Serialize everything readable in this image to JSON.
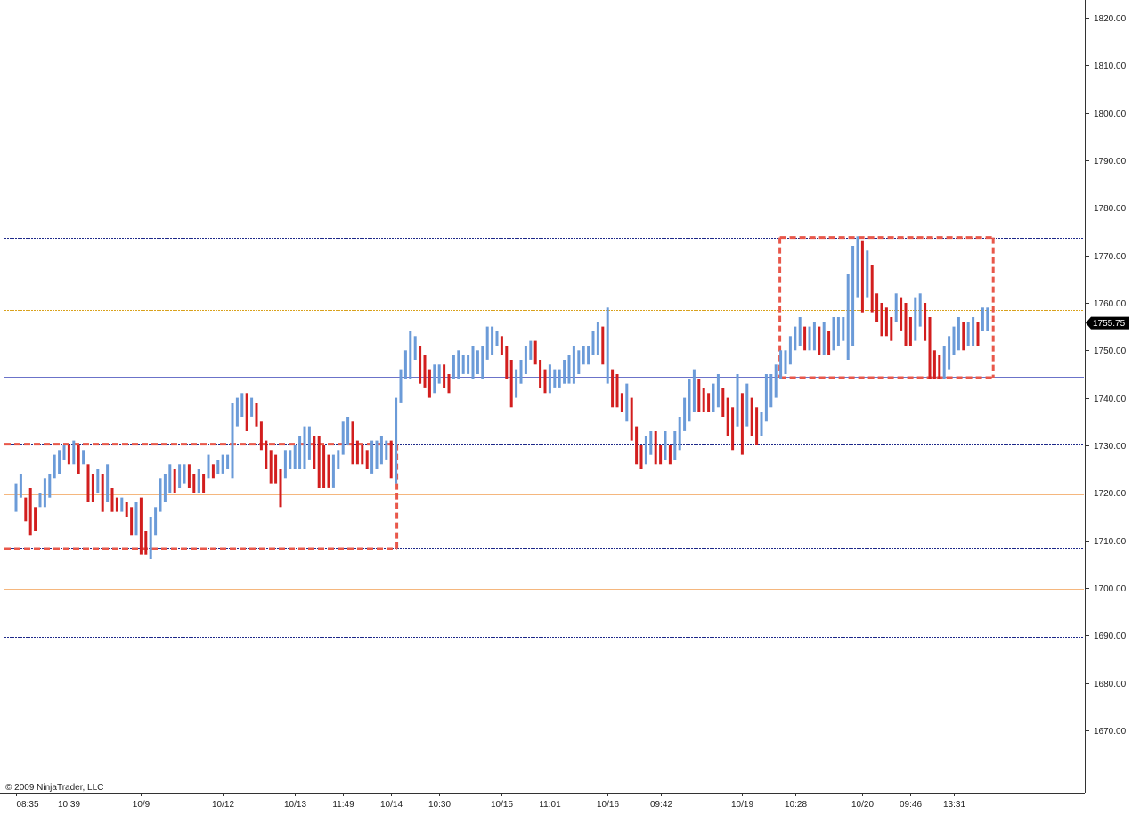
{
  "app": {
    "copyright": "© 2009 NinjaTrader, LLC"
  },
  "colors": {
    "up_bar": "#6b9bd8",
    "down_bar": "#d21e1e",
    "navy_line": "#1f2a8a",
    "orange_line": "#f5b77e",
    "gold_line": "#d9a21e",
    "blue_line": "#6b73c9",
    "box_color": "#e8574a",
    "axis": "#333333",
    "price_tag_bg": "#000000"
  },
  "chart_data": {
    "type": "ohlc",
    "title": "",
    "ylabel": "",
    "xlabel": "",
    "ylim": [
      1661,
      1823
    ],
    "y_ticks": [
      1820,
      1810,
      1800,
      1790,
      1780,
      1770,
      1760,
      1750,
      1740,
      1730,
      1720,
      1710,
      1700,
      1690,
      1680,
      1670
    ],
    "y_tick_labels": [
      "1820.00",
      "1810.00",
      "1800.00",
      "1790.00",
      "1780.00",
      "1770.00",
      "1760.00",
      "1750.00",
      "1740.00",
      "1730.00",
      "1720.00",
      "1710.00",
      "1700.00",
      "1690.00",
      "1680.00",
      "1670.00"
    ],
    "x_tick_labels": [
      {
        "bar": 0,
        "label": "08:35"
      },
      {
        "bar": 11,
        "label": "10:39"
      },
      {
        "bar": 26,
        "label": "10/9"
      },
      {
        "bar": 43,
        "label": "10/12"
      },
      {
        "bar": 58,
        "label": "10/13"
      },
      {
        "bar": 68,
        "label": "11:49"
      },
      {
        "bar": 78,
        "label": "10/14"
      },
      {
        "bar": 88,
        "label": "10:30"
      },
      {
        "bar": 101,
        "label": "10/15"
      },
      {
        "bar": 111,
        "label": "11:01"
      },
      {
        "bar": 123,
        "label": "10/16"
      },
      {
        "bar": 134,
        "label": "09:42"
      },
      {
        "bar": 151,
        "label": "10/19"
      },
      {
        "bar": 162,
        "label": "10:28"
      },
      {
        "bar": 176,
        "label": "10/20"
      },
      {
        "bar": 186,
        "label": "09:46"
      },
      {
        "bar": 195,
        "label": "13:31"
      }
    ],
    "last_price": 1755.75,
    "last_price_label": "1755.75",
    "horizontal_lines": [
      {
        "value": 1773.75,
        "style": "navy"
      },
      {
        "value": 1758.5,
        "style": "gold"
      },
      {
        "value": 1744.5,
        "style": "blue"
      },
      {
        "value": 1730.25,
        "style": "navy"
      },
      {
        "value": 1719.75,
        "style": "orange"
      },
      {
        "value": 1708.5,
        "style": "navy"
      },
      {
        "value": 1699.75,
        "style": "orange"
      },
      {
        "value": 1689.75,
        "style": "navy"
      }
    ],
    "range_boxes": [
      {
        "from_bar": 0,
        "to_bar": 79,
        "high": 1730.25,
        "low": 1708.25
      },
      {
        "from_bar": 159,
        "to_bar": 203,
        "high": 1773.75,
        "low": 1744.25
      }
    ],
    "bars": [
      [
        1716,
        1722
      ],
      [
        1719,
        1724
      ],
      [
        1714,
        1719
      ],
      [
        1711,
        1721
      ],
      [
        1712,
        1717
      ],
      [
        1717,
        1720
      ],
      [
        1717,
        1723
      ],
      [
        1719,
        1724
      ],
      [
        1723,
        1728
      ],
      [
        1724,
        1729
      ],
      [
        1727,
        1730
      ],
      [
        1726,
        1730
      ],
      [
        1726,
        1731
      ],
      [
        1724,
        1730
      ],
      [
        1726,
        1729
      ],
      [
        1718,
        1726
      ],
      [
        1718,
        1724
      ],
      [
        1720,
        1725
      ],
      [
        1716,
        1724
      ],
      [
        1718,
        1726
      ],
      [
        1716,
        1721
      ],
      [
        1716,
        1719
      ],
      [
        1716,
        1719
      ],
      [
        1715,
        1718
      ],
      [
        1711,
        1717
      ],
      [
        1711,
        1718
      ],
      [
        1707,
        1719
      ],
      [
        1707,
        1712
      ],
      [
        1706,
        1715
      ],
      [
        1711,
        1717
      ],
      [
        1716,
        1723
      ],
      [
        1718,
        1724
      ],
      [
        1720,
        1726
      ],
      [
        1720,
        1725
      ],
      [
        1721,
        1726
      ],
      [
        1722,
        1726
      ],
      [
        1721,
        1726
      ],
      [
        1720,
        1724
      ],
      [
        1720,
        1725
      ],
      [
        1720,
        1724
      ],
      [
        1723,
        1728
      ],
      [
        1723,
        1726
      ],
      [
        1724,
        1727
      ],
      [
        1724,
        1728
      ],
      [
        1725,
        1728
      ],
      [
        1723,
        1739
      ],
      [
        1734,
        1740
      ],
      [
        1736,
        1741
      ],
      [
        1733,
        1741
      ],
      [
        1736,
        1740
      ],
      [
        1734,
        1739
      ],
      [
        1729,
        1735
      ],
      [
        1725,
        1731
      ],
      [
        1722,
        1729
      ],
      [
        1722,
        1728
      ],
      [
        1717,
        1725
      ],
      [
        1723,
        1729
      ],
      [
        1725,
        1729
      ],
      [
        1725,
        1730
      ],
      [
        1725,
        1732
      ],
      [
        1725,
        1734
      ],
      [
        1727,
        1734
      ],
      [
        1725,
        1732
      ],
      [
        1721,
        1732
      ],
      [
        1721,
        1730
      ],
      [
        1721,
        1728
      ],
      [
        1721,
        1728
      ],
      [
        1725,
        1729
      ],
      [
        1728,
        1735
      ],
      [
        1730,
        1736
      ],
      [
        1726,
        1735
      ],
      [
        1726,
        1731
      ],
      [
        1726,
        1730
      ],
      [
        1725,
        1729
      ],
      [
        1724,
        1731
      ],
      [
        1725,
        1731
      ],
      [
        1726,
        1732
      ],
      [
        1727,
        1731
      ],
      [
        1723,
        1731
      ],
      [
        1722,
        1740
      ],
      [
        1739,
        1746
      ],
      [
        1744,
        1750
      ],
      [
        1744,
        1754
      ],
      [
        1748,
        1753
      ],
      [
        1743,
        1751
      ],
      [
        1742,
        1749
      ],
      [
        1740,
        1746
      ],
      [
        1741,
        1747
      ],
      [
        1743,
        1747
      ],
      [
        1742,
        1747
      ],
      [
        1741,
        1745
      ],
      [
        1744,
        1749
      ],
      [
        1744,
        1750
      ],
      [
        1745,
        1749
      ],
      [
        1745,
        1749
      ],
      [
        1744,
        1751
      ],
      [
        1745,
        1750
      ],
      [
        1744,
        1751
      ],
      [
        1748,
        1755
      ],
      [
        1749,
        1755
      ],
      [
        1751,
        1754
      ],
      [
        1749,
        1753
      ],
      [
        1744,
        1751
      ],
      [
        1738,
        1748
      ],
      [
        1740,
        1746
      ],
      [
        1743,
        1748
      ],
      [
        1745,
        1751
      ],
      [
        1748,
        1752
      ],
      [
        1747,
        1752
      ],
      [
        1742,
        1748
      ],
      [
        1741,
        1746
      ],
      [
        1741,
        1747
      ],
      [
        1742,
        1746
      ],
      [
        1742,
        1746
      ],
      [
        1743,
        1748
      ],
      [
        1743,
        1749
      ],
      [
        1743,
        1751
      ],
      [
        1745,
        1750
      ],
      [
        1747,
        1751
      ],
      [
        1747,
        1751
      ],
      [
        1749,
        1754
      ],
      [
        1749,
        1756
      ],
      [
        1747,
        1755
      ],
      [
        1743,
        1759
      ],
      [
        1738,
        1746
      ],
      [
        1738,
        1745
      ],
      [
        1737,
        1741
      ],
      [
        1735,
        1743
      ],
      [
        1731,
        1740
      ],
      [
        1726,
        1734
      ],
      [
        1725,
        1730
      ],
      [
        1726,
        1732
      ],
      [
        1728,
        1733
      ],
      [
        1726,
        1733
      ],
      [
        1726,
        1730
      ],
      [
        1727,
        1733
      ],
      [
        1726,
        1730
      ],
      [
        1727,
        1733
      ],
      [
        1729,
        1736
      ],
      [
        1733,
        1740
      ],
      [
        1735,
        1744
      ],
      [
        1737,
        1746
      ],
      [
        1737,
        1744
      ],
      [
        1737,
        1742
      ],
      [
        1737,
        1741
      ],
      [
        1737,
        1743
      ],
      [
        1738,
        1745
      ],
      [
        1736,
        1742
      ],
      [
        1732,
        1740
      ],
      [
        1729,
        1738
      ],
      [
        1734,
        1745
      ],
      [
        1728,
        1741
      ],
      [
        1734,
        1743
      ],
      [
        1732,
        1740
      ],
      [
        1730,
        1738
      ],
      [
        1732,
        1737
      ],
      [
        1735,
        1745
      ],
      [
        1738,
        1745
      ],
      [
        1740,
        1747
      ],
      [
        1744,
        1750
      ],
      [
        1745,
        1750
      ],
      [
        1747,
        1753
      ],
      [
        1750,
        1755
      ],
      [
        1751,
        1757
      ],
      [
        1750,
        1755
      ],
      [
        1750,
        1755
      ],
      [
        1750,
        1756
      ],
      [
        1749,
        1755
      ],
      [
        1749,
        1756
      ],
      [
        1749,
        1754
      ],
      [
        1750,
        1757
      ],
      [
        1751,
        1757
      ],
      [
        1752,
        1757
      ],
      [
        1748,
        1766
      ],
      [
        1751,
        1772
      ],
      [
        1761,
        1774
      ],
      [
        1758,
        1773
      ],
      [
        1761,
        1771
      ],
      [
        1758,
        1768
      ],
      [
        1756,
        1762
      ],
      [
        1753,
        1760
      ],
      [
        1753,
        1759
      ],
      [
        1752,
        1757
      ],
      [
        1756,
        1762
      ],
      [
        1754,
        1761
      ],
      [
        1751,
        1760
      ],
      [
        1751,
        1757
      ],
      [
        1752,
        1761
      ],
      [
        1755,
        1762
      ],
      [
        1752,
        1760
      ],
      [
        1744,
        1757
      ],
      [
        1744,
        1750
      ],
      [
        1744,
        1749
      ],
      [
        1744,
        1751
      ],
      [
        1746,
        1753
      ],
      [
        1749,
        1755
      ],
      [
        1750,
        1757
      ],
      [
        1750,
        1756
      ],
      [
        1751,
        1756
      ],
      [
        1751,
        1757
      ],
      [
        1751,
        1756
      ],
      [
        1754,
        1759
      ],
      [
        1754,
        1759
      ]
    ]
  }
}
